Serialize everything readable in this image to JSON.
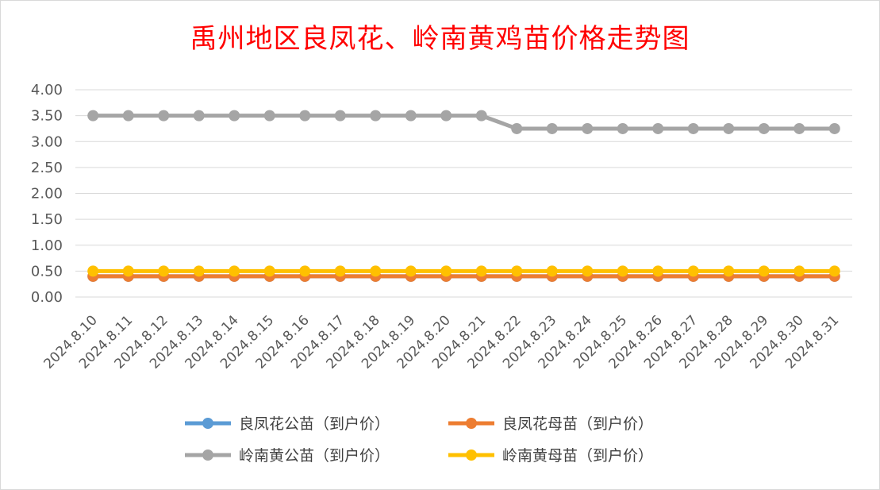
{
  "chart_data": {
    "type": "line",
    "title": "禹州地区良凤花、岭南黄鸡苗价格走势图",
    "xlabel": "",
    "ylabel": "",
    "ylim": [
      0,
      4
    ],
    "ytick_step": 0.5,
    "ytick_labels": [
      "0.00",
      "0.50",
      "1.00",
      "1.50",
      "2.00",
      "2.50",
      "3.00",
      "3.50",
      "4.00"
    ],
    "grid": true,
    "legend_position": "bottom",
    "categories": [
      "2024.8.10",
      "2024.8.11",
      "2024.8.12",
      "2024.8.13",
      "2024.8.14",
      "2024.8.15",
      "2024.8.16",
      "2024.8.17",
      "2024.8.18",
      "2024.8.19",
      "2024.8.20",
      "2024.8.21",
      "2024.8.22",
      "2024.8.23",
      "2024.8.24",
      "2024.8.25",
      "2024.8.26",
      "2024.8.27",
      "2024.8.28",
      "2024.8.29",
      "2024.8.30",
      "2024.8.31"
    ],
    "series": [
      {
        "name": "良凤花公苗（到户价）",
        "color": "#5b9bd5",
        "values": [
          0.4,
          0.4,
          0.4,
          0.4,
          0.4,
          0.4,
          0.4,
          0.4,
          0.4,
          0.4,
          0.4,
          0.4,
          0.4,
          0.4,
          0.4,
          0.4,
          0.4,
          0.4,
          0.4,
          0.4,
          0.4,
          0.4
        ]
      },
      {
        "name": "良凤花母苗（到户价）",
        "color": "#ed7d31",
        "values": [
          0.4,
          0.4,
          0.4,
          0.4,
          0.4,
          0.4,
          0.4,
          0.4,
          0.4,
          0.4,
          0.4,
          0.4,
          0.4,
          0.4,
          0.4,
          0.4,
          0.4,
          0.4,
          0.4,
          0.4,
          0.4,
          0.4
        ]
      },
      {
        "name": "岭南黄公苗（到户价）",
        "color": "#a5a5a5",
        "values": [
          3.5,
          3.5,
          3.5,
          3.5,
          3.5,
          3.5,
          3.5,
          3.5,
          3.5,
          3.5,
          3.5,
          3.5,
          3.25,
          3.25,
          3.25,
          3.25,
          3.25,
          3.25,
          3.25,
          3.25,
          3.25,
          3.25
        ]
      },
      {
        "name": "岭南黄母苗（到户价）",
        "color": "#ffc000",
        "values": [
          0.5,
          0.5,
          0.5,
          0.5,
          0.5,
          0.5,
          0.5,
          0.5,
          0.5,
          0.5,
          0.5,
          0.5,
          0.5,
          0.5,
          0.5,
          0.5,
          0.5,
          0.5,
          0.5,
          0.5,
          0.5,
          0.5
        ]
      }
    ],
    "legend_order": [
      0,
      1,
      2,
      3
    ]
  },
  "colors": {
    "title": "#ff0000",
    "grid": "#d9d9d9",
    "axis_text": "#595959",
    "legend_text": "#404040"
  }
}
